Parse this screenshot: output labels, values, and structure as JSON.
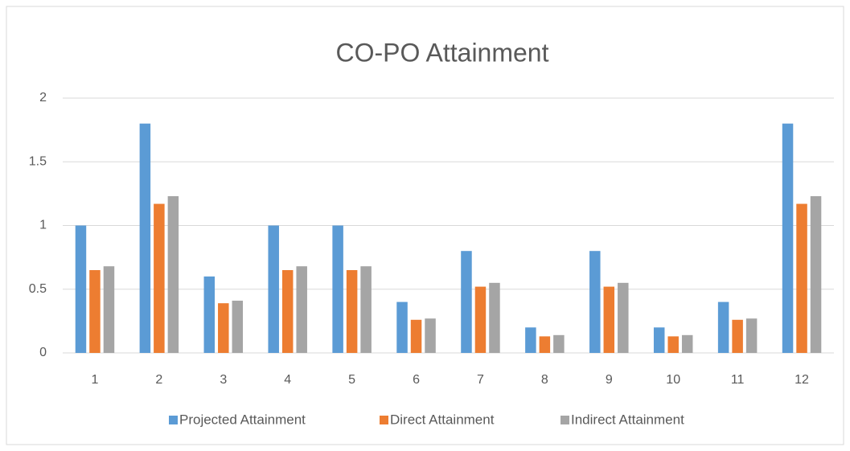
{
  "chart_data": {
    "type": "bar",
    "title": "CO-PO Attainment",
    "categories": [
      "1",
      "2",
      "3",
      "4",
      "5",
      "6",
      "7",
      "8",
      "9",
      "10",
      "11",
      "12"
    ],
    "series": [
      {
        "name": "Projected Attainment",
        "color": "#5b9bd5",
        "values": [
          1,
          1.8,
          0.6,
          1,
          1,
          0.4,
          0.8,
          0.2,
          0.8,
          0.2,
          0.4,
          1.8
        ]
      },
      {
        "name": "Direct Attainment",
        "color": "#ed7d31",
        "values": [
          0.65,
          1.17,
          0.39,
          0.65,
          0.65,
          0.26,
          0.52,
          0.13,
          0.52,
          0.13,
          0.26,
          1.17
        ]
      },
      {
        "name": "Indirect Attainment",
        "color": "#a5a5a5",
        "values": [
          0.68,
          1.23,
          0.41,
          0.68,
          0.68,
          0.27,
          0.55,
          0.14,
          0.55,
          0.14,
          0.27,
          1.23
        ]
      }
    ],
    "ylim": [
      0,
      2
    ],
    "yticks": [
      0,
      0.5,
      1,
      1.5,
      2
    ],
    "grid": true,
    "legend": "bottom"
  }
}
